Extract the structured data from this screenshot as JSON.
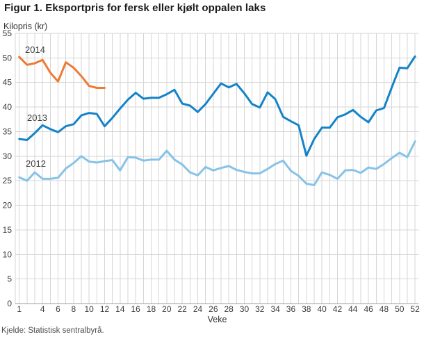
{
  "chart_data": {
    "type": "line",
    "title": "Figur 1. Eksportpris for fersk eller kjølt oppalen laks",
    "y_axis_title": "Kilopris (kr)",
    "x_axis_title": "Veke",
    "source": "Kjelde: Statistisk sentralbyrå.",
    "grid": true,
    "legend_position": "inline-labels",
    "ylim": [
      0,
      55
    ],
    "y_tick_step": 5,
    "x_range": [
      1,
      52
    ],
    "x_label_ticks": [
      1,
      4,
      6,
      8,
      10,
      12,
      14,
      16,
      18,
      20,
      22,
      24,
      26,
      28,
      30,
      32,
      34,
      36,
      38,
      40,
      42,
      44,
      46,
      48,
      50,
      52
    ],
    "series": [
      {
        "name": "2012",
        "color": "#87c3e7",
        "start_week": 1,
        "values": [
          25.7,
          25.0,
          26.7,
          25.4,
          25.4,
          25.6,
          27.5,
          28.6,
          30.0,
          28.9,
          28.7,
          29.0,
          29.2,
          27.1,
          29.8,
          29.7,
          29.1,
          29.3,
          29.3,
          31.1,
          29.3,
          28.3,
          26.7,
          26.1,
          27.8,
          27.1,
          27.6,
          28.0,
          27.2,
          26.8,
          26.5,
          26.5,
          27.4,
          28.4,
          29.1,
          27.0,
          26.0,
          24.4,
          24.1,
          26.7,
          26.2,
          25.4,
          27.1,
          27.2,
          26.6,
          27.7,
          27.4,
          28.4,
          29.6,
          30.7,
          29.8,
          33.0
        ]
      },
      {
        "name": "2013",
        "color": "#1483c8",
        "start_week": 1,
        "values": [
          33.5,
          33.3,
          34.7,
          36.3,
          35.5,
          34.9,
          36.1,
          36.5,
          38.3,
          38.8,
          38.6,
          36.1,
          37.8,
          39.7,
          41.5,
          42.9,
          41.7,
          41.9,
          41.9,
          42.6,
          43.5,
          40.7,
          40.3,
          39.0,
          40.6,
          42.7,
          44.8,
          44.0,
          44.7,
          42.8,
          40.6,
          39.9,
          43.0,
          41.6,
          38.0,
          37.1,
          36.3,
          30.1,
          33.5,
          35.8,
          35.8,
          37.9,
          38.5,
          39.4,
          38.0,
          36.9,
          39.3,
          39.8,
          44.0,
          48.0,
          47.9,
          50.3
        ]
      },
      {
        "name": "2014",
        "color": "#ee7a33",
        "start_week": 1,
        "values": [
          50.2,
          48.6,
          48.9,
          49.6,
          47.0,
          45.2,
          49.1,
          48.0,
          46.3,
          44.3,
          43.9,
          43.9
        ]
      }
    ]
  }
}
